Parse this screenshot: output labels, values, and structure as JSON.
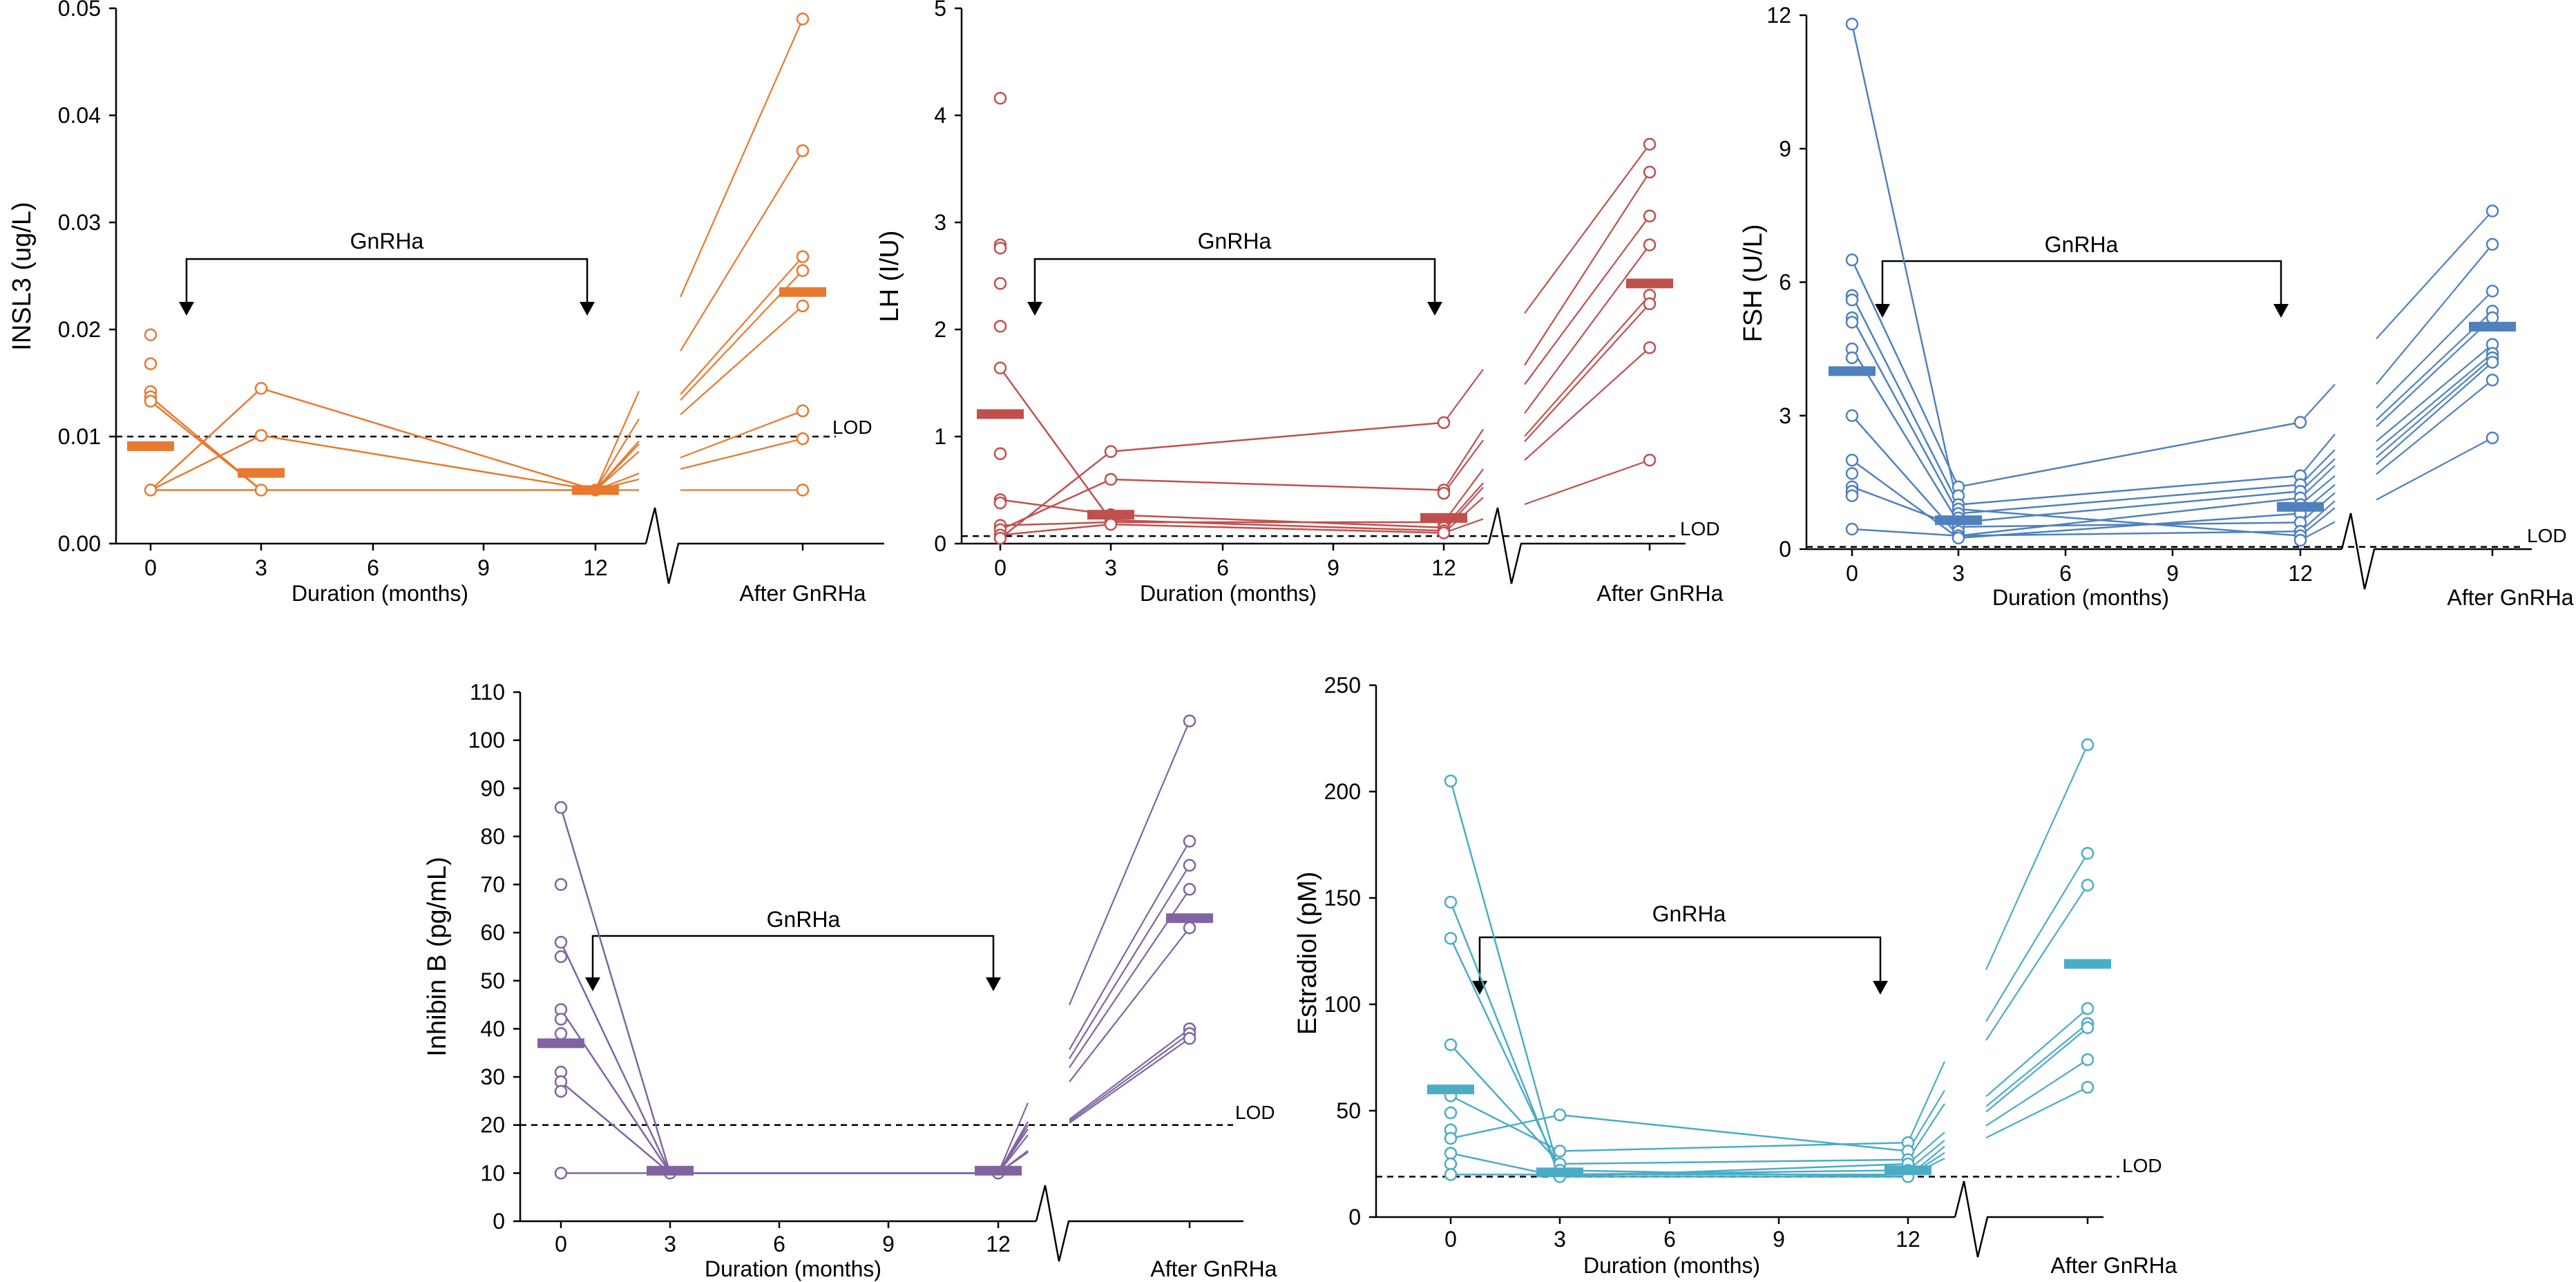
{
  "colors": {
    "orange": "#E8792E",
    "red": "#C0504D",
    "blue": "#4F81BD",
    "purple": "#8064A2",
    "teal": "#4BACC6",
    "black": "#000000"
  },
  "chart_data": [
    {
      "id": "insl3",
      "type": "scatter",
      "ylabel": "INSL3 (ug/L)",
      "xlabel": "Duration (months)",
      "after_label": "After GnRHa",
      "bracket_label": "GnRHa",
      "lod_label": "LOD",
      "lod_value": 0.01,
      "ylim": [
        0,
        0.05
      ],
      "yticks": [
        0,
        0.01,
        0.02,
        0.03,
        0.04,
        0.05
      ],
      "ytick_labels": [
        "0.00",
        "0.01",
        "0.02",
        "0.03",
        "0.04",
        "0.05"
      ],
      "xticks": [
        0,
        3,
        6,
        9,
        12
      ],
      "xtick_labels": [
        "0",
        "3",
        "6",
        "9",
        "12"
      ],
      "color": "#E8792E",
      "points_0": [
        0.0195,
        0.0168,
        0.0142,
        0.0137,
        0.0133,
        0.005
      ],
      "points_3": [
        0.0145,
        0.0101,
        0.005
      ],
      "points_12": [
        0.005
      ],
      "points_after": [
        0.049,
        0.0367,
        0.0268,
        0.0255,
        0.0222,
        0.0124,
        0.0098,
        0.005
      ],
      "trajectories": [
        [
          0,
          0.0137
        ],
        [
          3,
          0.005
        ],
        [
          0,
          0.0133
        ],
        [
          3,
          0.005
        ],
        [
          0,
          0.005
        ],
        [
          3,
          0.0145
        ],
        [
          12,
          0.005
        ],
        [
          0,
          0.005
        ],
        [
          3,
          0.0101
        ],
        [
          12,
          0.005
        ],
        [
          0,
          0.005
        ],
        [
          12,
          0.005
        ]
      ],
      "median": {
        "m0": 0.0091,
        "m3": 0.0066,
        "m12": 0.005,
        "after": 0.0235
      }
    },
    {
      "id": "lh",
      "type": "scatter",
      "ylabel": "LH (I/U)",
      "xlabel": "Duration (months)",
      "after_label": "After GnRHa",
      "bracket_label": "GnRHa",
      "lod_label": "LOD",
      "lod_value": 0.07,
      "ylim": [
        0,
        5
      ],
      "yticks": [
        0,
        1,
        2,
        3,
        4,
        5
      ],
      "ytick_labels": [
        "0",
        "1",
        "2",
        "3",
        "4",
        "5"
      ],
      "xticks": [
        0,
        3,
        6,
        9,
        12
      ],
      "xtick_labels": [
        "0",
        "3",
        "6",
        "9",
        "12"
      ],
      "color": "#C0504D",
      "points_0": [
        4.16,
        2.79,
        2.76,
        2.43,
        2.03,
        1.64,
        0.84,
        0.41,
        0.38,
        0.17,
        0.13,
        0.08,
        0.05
      ],
      "points_3": [
        0.86,
        0.6,
        0.27,
        0.22,
        0.18
      ],
      "points_12": [
        1.13,
        0.5,
        0.47,
        0.2,
        0.15,
        0.12,
        0.1
      ],
      "points_after": [
        3.73,
        3.47,
        3.06,
        2.79,
        2.32,
        2.24,
        1.83,
        0.78
      ],
      "trajectories": [
        [
          0,
          0.05
        ],
        [
          3,
          0.86
        ],
        [
          12,
          1.13
        ],
        [
          0,
          0.13
        ],
        [
          3,
          0.6
        ],
        [
          12,
          0.5
        ],
        [
          0,
          0.41
        ],
        [
          3,
          0.27
        ],
        [
          12,
          0.15
        ],
        [
          0,
          1.64
        ],
        [
          3,
          0.22
        ],
        [
          12,
          0.12
        ],
        [
          0,
          0.08
        ],
        [
          3,
          0.18
        ],
        [
          12,
          0.1
        ],
        [
          0,
          0.17
        ],
        [
          3,
          0.2
        ],
        [
          12,
          0.2
        ]
      ],
      "median": {
        "m0": 1.21,
        "m3": 0.27,
        "m12": 0.24,
        "after": 2.43
      }
    },
    {
      "id": "fsh",
      "type": "scatter",
      "ylabel": "FSH (U/L)",
      "xlabel": "Duration (months)",
      "after_label": "After GnRHa",
      "bracket_label": "GnRHa",
      "lod_label": "LOD",
      "lod_value": 0.05,
      "ylim": [
        0,
        12
      ],
      "yticks": [
        0,
        3,
        6,
        9,
        12
      ],
      "ytick_labels": [
        "0",
        "3",
        "6",
        "9",
        "12"
      ],
      "xticks": [
        0,
        3,
        6,
        9,
        12
      ],
      "xtick_labels": [
        "0",
        "3",
        "6",
        "9",
        "12"
      ],
      "color": "#4F81BD",
      "points_0": [
        11.8,
        6.5,
        5.7,
        5.6,
        5.2,
        5.1,
        4.5,
        4.3,
        3.0,
        2.0,
        1.7,
        1.4,
        1.3,
        1.2,
        0.45
      ],
      "points_3": [
        1.4,
        1.2,
        1.0,
        0.9,
        0.8,
        0.7,
        0.6,
        0.5,
        0.4,
        0.3,
        0.25
      ],
      "points_12": [
        2.85,
        1.65,
        1.45,
        1.3,
        1.15,
        1.0,
        0.8,
        0.6,
        0.4,
        0.3,
        0.2
      ],
      "points_after": [
        7.6,
        6.85,
        5.8,
        5.35,
        5.2,
        4.6,
        4.4,
        4.3,
        4.2,
        3.8,
        2.5
      ],
      "trajectories": [
        [
          0,
          11.8
        ],
        [
          3,
          0.9
        ],
        [
          12,
          0.3
        ],
        [
          0,
          6.5
        ],
        [
          3,
          1.4
        ],
        [
          12,
          2.85
        ],
        [
          0,
          5.7
        ],
        [
          3,
          1.0
        ],
        [
          12,
          1.65
        ],
        [
          0,
          5.2
        ],
        [
          3,
          0.8
        ],
        [
          12,
          1.45
        ],
        [
          0,
          4.5
        ],
        [
          3,
          0.6
        ],
        [
          12,
          1.3
        ],
        [
          0,
          3.0
        ],
        [
          3,
          0.3
        ],
        [
          12,
          1.15
        ],
        [
          0,
          2.0
        ],
        [
          3,
          0.25
        ],
        [
          12,
          0.8
        ],
        [
          0,
          1.4
        ],
        [
          3,
          0.5
        ],
        [
          12,
          0.6
        ],
        [
          0,
          0.45
        ],
        [
          3,
          0.3
        ],
        [
          12,
          0.4
        ]
      ],
      "median": {
        "m0": 4.0,
        "m3": 0.65,
        "m12": 0.95,
        "after": 5.0
      }
    },
    {
      "id": "inhibin",
      "type": "scatter",
      "ylabel": "Inhibin B (pg/mL)",
      "xlabel": "Duration (months)",
      "after_label": "After GnRHa",
      "bracket_label": "GnRHa",
      "lod_label": "LOD",
      "lod_value": 20,
      "ylim": [
        0,
        110
      ],
      "yticks": [
        0,
        10,
        20,
        30,
        40,
        50,
        60,
        70,
        80,
        90,
        100,
        110
      ],
      "ytick_labels": [
        "0",
        "10",
        "20",
        "30",
        "40",
        "50",
        "60",
        "70",
        "80",
        "90",
        "100",
        "110"
      ],
      "xticks": [
        0,
        3,
        6,
        9,
        12
      ],
      "xtick_labels": [
        "0",
        "3",
        "6",
        "9",
        "12"
      ],
      "color": "#8064A2",
      "points_0": [
        86,
        70,
        58,
        55,
        44,
        42,
        39,
        31,
        29,
        27,
        10
      ],
      "points_3": [
        10
      ],
      "points_12": [
        10
      ],
      "points_after": [
        104,
        79,
        74,
        69,
        61,
        40,
        39,
        38
      ],
      "trajectories": [
        [
          0,
          86
        ],
        [
          3,
          10
        ],
        [
          12,
          10
        ],
        [
          0,
          58
        ],
        [
          3,
          10
        ],
        [
          12,
          10
        ],
        [
          0,
          44
        ],
        [
          3,
          10
        ],
        [
          12,
          10
        ],
        [
          0,
          29
        ],
        [
          3,
          10
        ],
        [
          12,
          10
        ],
        [
          0,
          10
        ],
        [
          3,
          10
        ],
        [
          12,
          10
        ]
      ],
      "median": {
        "m0": 37,
        "m3": 10.5,
        "m12": 10.5,
        "after": 63
      }
    },
    {
      "id": "estradiol",
      "type": "scatter",
      "ylabel": "Estradiol (pM)",
      "xlabel": "Duration (months)",
      "after_label": "After GnRHa",
      "bracket_label": "GnRHa",
      "lod_label": "LOD",
      "lod_value": 19,
      "ylim": [
        0,
        250
      ],
      "yticks": [
        0,
        50,
        100,
        150,
        200,
        250
      ],
      "ytick_labels": [
        "0",
        "50",
        "100",
        "150",
        "200",
        "250"
      ],
      "xticks": [
        0,
        3,
        6,
        9,
        12
      ],
      "xtick_labels": [
        "0",
        "3",
        "6",
        "9",
        "12"
      ],
      "color": "#4BACC6",
      "points_0": [
        205,
        148,
        131,
        81,
        57,
        49,
        41,
        37,
        30,
        25,
        20
      ],
      "points_3": [
        48,
        31,
        25,
        22,
        20,
        19
      ],
      "points_12": [
        35,
        31,
        27,
        25,
        22,
        19
      ],
      "points_after": [
        222,
        171,
        156,
        98,
        91,
        89,
        74,
        61
      ],
      "trajectories": [
        [
          0,
          205
        ],
        [
          3,
          20
        ],
        [
          12,
          22
        ],
        [
          0,
          148
        ],
        [
          3,
          19
        ],
        [
          12,
          25
        ],
        [
          0,
          131
        ],
        [
          3,
          22
        ],
        [
          12,
          19
        ],
        [
          0,
          81
        ],
        [
          3,
          25
        ],
        [
          12,
          27
        ],
        [
          0,
          57
        ],
        [
          3,
          31
        ],
        [
          12,
          35
        ],
        [
          0,
          37
        ],
        [
          3,
          48
        ],
        [
          12,
          31
        ],
        [
          0,
          30
        ],
        [
          3,
          19
        ],
        [
          12,
          19
        ],
        [
          0,
          20
        ],
        [
          3,
          20
        ],
        [
          12,
          20
        ]
      ],
      "median": {
        "m0": 60,
        "m3": 21,
        "m12": 22,
        "after": 119
      }
    }
  ]
}
